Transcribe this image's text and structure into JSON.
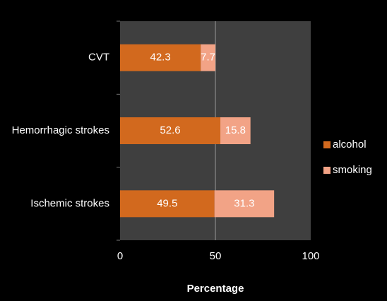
{
  "chart_data": {
    "type": "stacked-bar-horizontal",
    "categories": [
      "CVT",
      "Hemorrhagic strokes",
      "Ischemic strokes"
    ],
    "series": [
      {
        "name": "alcohol",
        "color": "#d2691e",
        "values": [
          42.3,
          52.6,
          49.5
        ]
      },
      {
        "name": "smoking",
        "color": "#f2a386",
        "values": [
          7.7,
          15.8,
          31.3
        ]
      }
    ],
    "x_label": "Percentage",
    "xlim": [
      0,
      100
    ],
    "xticks": [
      0,
      50,
      100
    ],
    "grid": true,
    "legend": "right"
  }
}
